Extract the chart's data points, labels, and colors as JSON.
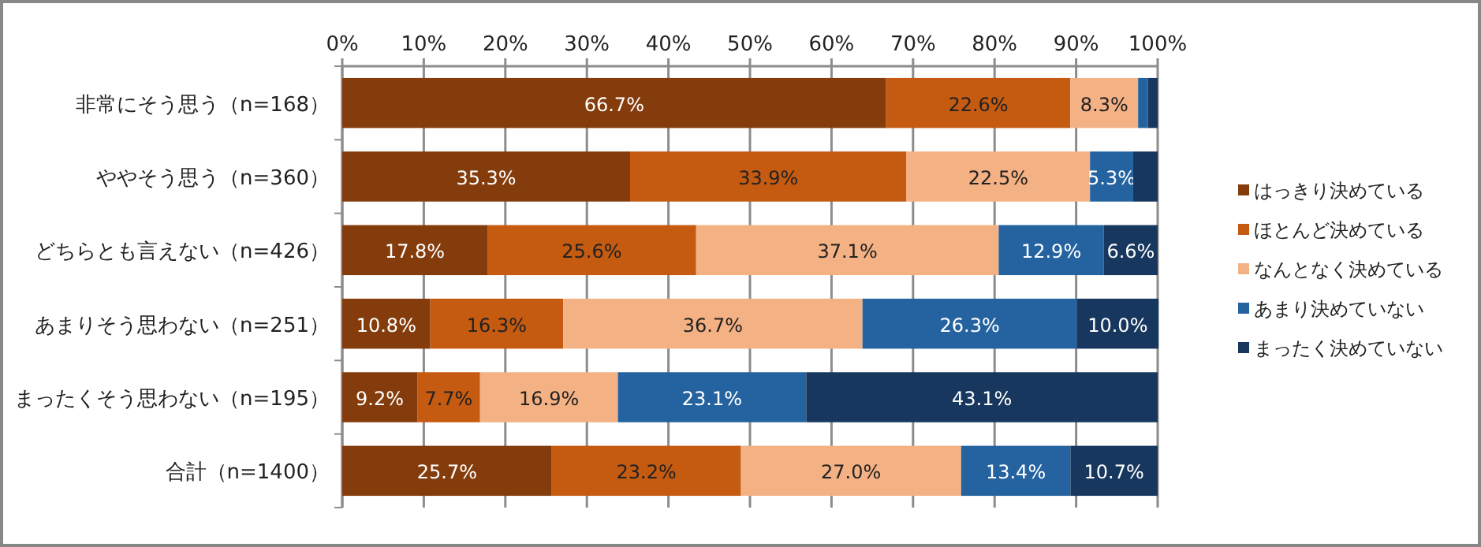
{
  "chart_data": {
    "type": "bar",
    "orientation": "horizontal",
    "stacked": true,
    "grid": "x",
    "legend": "right",
    "categories": [
      "非常にそう思う（n=168）",
      "ややそう思う（n=360）",
      "どちらとも言えない（n=426）",
      "あまりそう思わない（n=251）",
      "まったくそう思わない（n=195）",
      "合計（n=1400）"
    ],
    "xlim": [
      0,
      100
    ],
    "xticks": [
      {
        "value": 0,
        "label": "0%"
      },
      {
        "value": 10,
        "label": "10%"
      },
      {
        "value": 20,
        "label": "20%"
      },
      {
        "value": 30,
        "label": "30%"
      },
      {
        "value": 40,
        "label": "40%"
      },
      {
        "value": 50,
        "label": "50%"
      },
      {
        "value": 60,
        "label": "60%"
      },
      {
        "value": 70,
        "label": "70%"
      },
      {
        "value": 80,
        "label": "80%"
      },
      {
        "value": 90,
        "label": "90%"
      },
      {
        "value": 100,
        "label": "100%"
      }
    ],
    "series": [
      {
        "name": "はっきり決めている",
        "color": "#843c0c",
        "values": [
          66.7,
          35.3,
          17.8,
          10.8,
          9.2,
          25.7
        ],
        "value_labels": [
          "66.7%",
          "35.3%",
          "17.8%",
          "10.8%",
          "9.2%",
          "25.7%"
        ]
      },
      {
        "name": "ほとんど決めている",
        "color": "#c55a11",
        "values": [
          22.6,
          33.9,
          25.6,
          16.3,
          7.7,
          23.2
        ],
        "value_labels": [
          "22.6%",
          "33.9%",
          "25.6%",
          "16.3%",
          "7.7%",
          "23.2%"
        ]
      },
      {
        "name": "なんとなく決めている",
        "color": "#f4b183",
        "values": [
          8.3,
          22.5,
          37.1,
          36.7,
          16.9,
          27.0
        ],
        "value_labels": [
          "8.3%",
          "22.5%",
          "37.1%",
          "36.7%",
          "16.9%",
          "27.0%"
        ]
      },
      {
        "name": "あまり決めていない",
        "color": "#2563a0",
        "values": [
          1.2,
          5.3,
          12.9,
          26.3,
          23.1,
          13.4
        ],
        "value_labels": [
          null,
          "5.3%",
          "12.9%",
          "26.3%",
          "23.1%",
          "13.4%"
        ]
      },
      {
        "name": "まったく決めていない",
        "color": "#17375e",
        "values": [
          1.2,
          3.0,
          6.6,
          10.0,
          43.1,
          10.7
        ],
        "value_labels": [
          null,
          null,
          "6.6%",
          "10.0%",
          "43.1%",
          "10.7%"
        ]
      }
    ]
  }
}
